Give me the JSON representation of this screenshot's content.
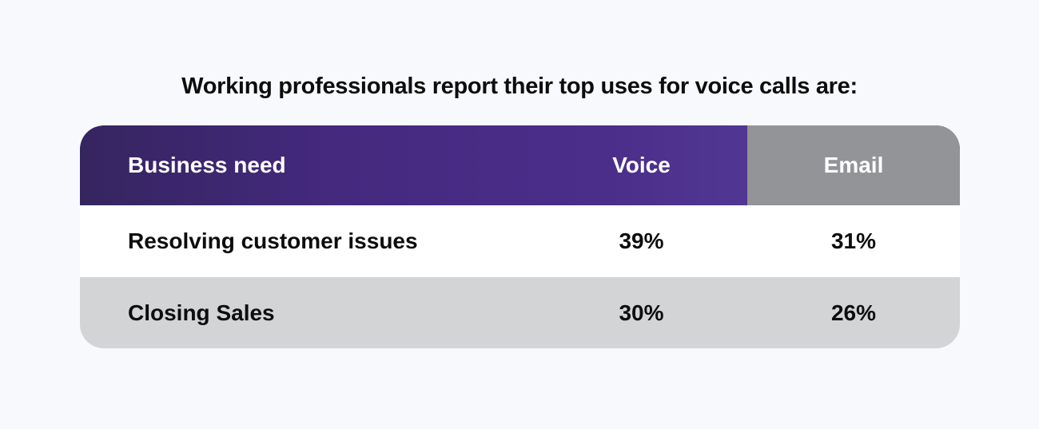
{
  "chart_data": {
    "type": "table",
    "title": "Working professionals report their top uses for voice calls are:",
    "columns": [
      "Business need",
      "Voice",
      "Email"
    ],
    "rows": [
      [
        "Resolving customer issues",
        "39%",
        "31%"
      ],
      [
        "Closing Sales",
        "30%",
        "26%"
      ]
    ]
  },
  "colors": {
    "header_start": "#35255f",
    "header_end": "#5a43a0",
    "email_header": "#939497",
    "alt_row": "#d3d4d6"
  }
}
